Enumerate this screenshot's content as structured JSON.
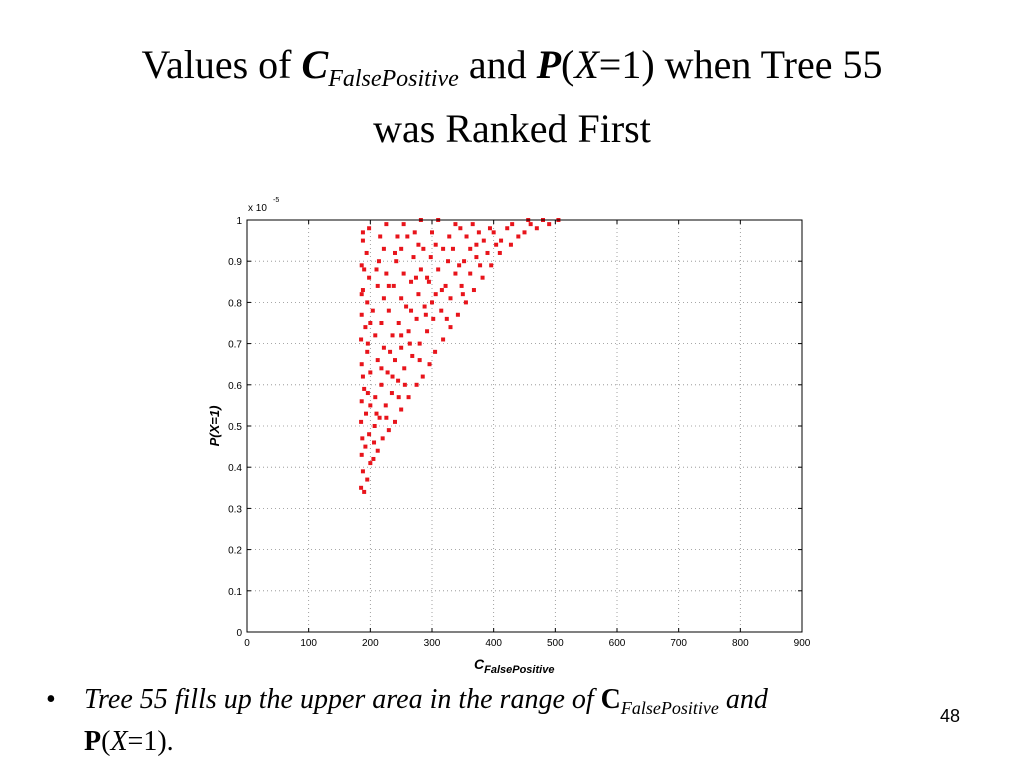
{
  "slide": {
    "title_prefix": "Values of ",
    "title_c": "C",
    "title_c_sub": "FalsePositive",
    "title_and": " and ",
    "title_p": "P",
    "title_open": "(",
    "title_x": "X",
    "title_eq": "=1) when Tree 55",
    "title_line2": "was Ranked First",
    "bullet_symbol": "•",
    "bullet_part1": "Tree 55 fills up the upper area in the range of ",
    "bullet_c": "C",
    "bullet_c_sub": "FalsePositive",
    "bullet_and": " and",
    "bullet_p": "P",
    "bullet_open": "(",
    "bullet_x": "X",
    "bullet_end": "=1).",
    "page_number": "48"
  },
  "chart_data": {
    "type": "scatter",
    "xlabel_main": "C",
    "xlabel_sub": "FalsePositive",
    "ylabel": "P(X=1)",
    "y_exponent_label": "x 10",
    "y_exponent": "-5",
    "xlim": [
      0,
      900
    ],
    "ylim": [
      0,
      1
    ],
    "xticks": [
      "0",
      "100",
      "200",
      "300",
      "400",
      "500",
      "600",
      "700",
      "800",
      "900"
    ],
    "yticks": [
      "0",
      "0.1",
      "0.2",
      "0.3",
      "0.4",
      "0.5",
      "0.6",
      "0.7",
      "0.8",
      "0.9",
      "1"
    ],
    "grid": true,
    "marker_color": "#e8141b",
    "series": [
      {
        "points": [
          [
            185,
            0.35
          ],
          [
            190,
            0.34
          ],
          [
            195,
            0.37
          ],
          [
            188,
            0.39
          ],
          [
            200,
            0.41
          ],
          [
            186,
            0.43
          ],
          [
            205,
            0.42
          ],
          [
            192,
            0.45
          ],
          [
            212,
            0.44
          ],
          [
            187,
            0.47
          ],
          [
            198,
            0.48
          ],
          [
            220,
            0.47
          ],
          [
            207,
            0.5
          ],
          [
            185,
            0.51
          ],
          [
            230,
            0.49
          ],
          [
            193,
            0.53
          ],
          [
            215,
            0.52
          ],
          [
            240,
            0.51
          ],
          [
            200,
            0.55
          ],
          [
            225,
            0.55
          ],
          [
            186,
            0.56
          ],
          [
            250,
            0.54
          ],
          [
            208,
            0.57
          ],
          [
            235,
            0.58
          ],
          [
            190,
            0.59
          ],
          [
            262,
            0.57
          ],
          [
            218,
            0.6
          ],
          [
            245,
            0.61
          ],
          [
            188,
            0.62
          ],
          [
            275,
            0.6
          ],
          [
            200,
            0.63
          ],
          [
            228,
            0.63
          ],
          [
            255,
            0.64
          ],
          [
            285,
            0.62
          ],
          [
            186,
            0.65
          ],
          [
            212,
            0.66
          ],
          [
            240,
            0.66
          ],
          [
            268,
            0.67
          ],
          [
            296,
            0.65
          ],
          [
            195,
            0.68
          ],
          [
            222,
            0.69
          ],
          [
            250,
            0.69
          ],
          [
            280,
            0.7
          ],
          [
            305,
            0.68
          ],
          [
            185,
            0.71
          ],
          [
            208,
            0.72
          ],
          [
            236,
            0.72
          ],
          [
            262,
            0.73
          ],
          [
            292,
            0.73
          ],
          [
            318,
            0.71
          ],
          [
            192,
            0.74
          ],
          [
            218,
            0.75
          ],
          [
            246,
            0.75
          ],
          [
            275,
            0.76
          ],
          [
            302,
            0.76
          ],
          [
            330,
            0.74
          ],
          [
            186,
            0.77
          ],
          [
            204,
            0.78
          ],
          [
            230,
            0.78
          ],
          [
            258,
            0.79
          ],
          [
            288,
            0.79
          ],
          [
            315,
            0.78
          ],
          [
            342,
            0.77
          ],
          [
            195,
            0.8
          ],
          [
            222,
            0.81
          ],
          [
            250,
            0.81
          ],
          [
            278,
            0.82
          ],
          [
            306,
            0.82
          ],
          [
            330,
            0.81
          ],
          [
            355,
            0.8
          ],
          [
            188,
            0.83
          ],
          [
            212,
            0.84
          ],
          [
            238,
            0.84
          ],
          [
            266,
            0.85
          ],
          [
            295,
            0.85
          ],
          [
            322,
            0.84
          ],
          [
            348,
            0.84
          ],
          [
            368,
            0.83
          ],
          [
            198,
            0.86
          ],
          [
            226,
            0.87
          ],
          [
            254,
            0.87
          ],
          [
            282,
            0.88
          ],
          [
            310,
            0.88
          ],
          [
            338,
            0.87
          ],
          [
            362,
            0.87
          ],
          [
            382,
            0.86
          ],
          [
            186,
            0.89
          ],
          [
            214,
            0.9
          ],
          [
            242,
            0.9
          ],
          [
            270,
            0.91
          ],
          [
            298,
            0.91
          ],
          [
            326,
            0.9
          ],
          [
            352,
            0.9
          ],
          [
            378,
            0.89
          ],
          [
            396,
            0.89
          ],
          [
            194,
            0.92
          ],
          [
            222,
            0.93
          ],
          [
            250,
            0.93
          ],
          [
            278,
            0.94
          ],
          [
            306,
            0.94
          ],
          [
            334,
            0.93
          ],
          [
            362,
            0.93
          ],
          [
            390,
            0.92
          ],
          [
            410,
            0.92
          ],
          [
            188,
            0.95
          ],
          [
            216,
            0.96
          ],
          [
            244,
            0.96
          ],
          [
            272,
            0.97
          ],
          [
            300,
            0.97
          ],
          [
            328,
            0.96
          ],
          [
            356,
            0.96
          ],
          [
            384,
            0.95
          ],
          [
            412,
            0.95
          ],
          [
            428,
            0.94
          ],
          [
            198,
            0.98
          ],
          [
            226,
            0.99
          ],
          [
            254,
            0.99
          ],
          [
            282,
            1.0
          ],
          [
            310,
            1.0
          ],
          [
            338,
            0.99
          ],
          [
            366,
            0.99
          ],
          [
            394,
            0.98
          ],
          [
            422,
            0.98
          ],
          [
            450,
            0.97
          ],
          [
            470,
            0.98
          ],
          [
            490,
            0.99
          ],
          [
            505,
            1.0
          ],
          [
            440,
            0.96
          ],
          [
            460,
            0.99
          ],
          [
            480,
            1.0
          ],
          [
            236,
            0.62
          ],
          [
            264,
            0.7
          ],
          [
            290,
            0.77
          ],
          [
            316,
            0.83
          ],
          [
            344,
            0.89
          ],
          [
            372,
            0.94
          ],
          [
            400,
            0.97
          ],
          [
            206,
            0.46
          ],
          [
            226,
            0.52
          ],
          [
            246,
            0.57
          ],
          [
            196,
            0.7
          ],
          [
            230,
            0.84
          ],
          [
            260,
            0.96
          ],
          [
            286,
            0.93
          ],
          [
            210,
            0.88
          ],
          [
            240,
            0.92
          ],
          [
            274,
            0.86
          ],
          [
            300,
            0.8
          ],
          [
            324,
            0.76
          ],
          [
            350,
            0.82
          ],
          [
            372,
            0.91
          ],
          [
            200,
            0.75
          ],
          [
            250,
            0.72
          ],
          [
            280,
            0.66
          ],
          [
            256,
            0.6
          ],
          [
            218,
            0.64
          ],
          [
            196,
            0.58
          ],
          [
            210,
            0.53
          ],
          [
            232,
            0.68
          ],
          [
            266,
            0.78
          ],
          [
            292,
            0.86
          ],
          [
            318,
            0.93
          ],
          [
            346,
            0.98
          ],
          [
            376,
            0.97
          ],
          [
            404,
            0.94
          ],
          [
            430,
            0.99
          ],
          [
            456,
            1.0
          ],
          [
            186,
            0.82
          ],
          [
            188,
            0.97
          ],
          [
            190,
            0.88
          ]
        ]
      }
    ]
  }
}
